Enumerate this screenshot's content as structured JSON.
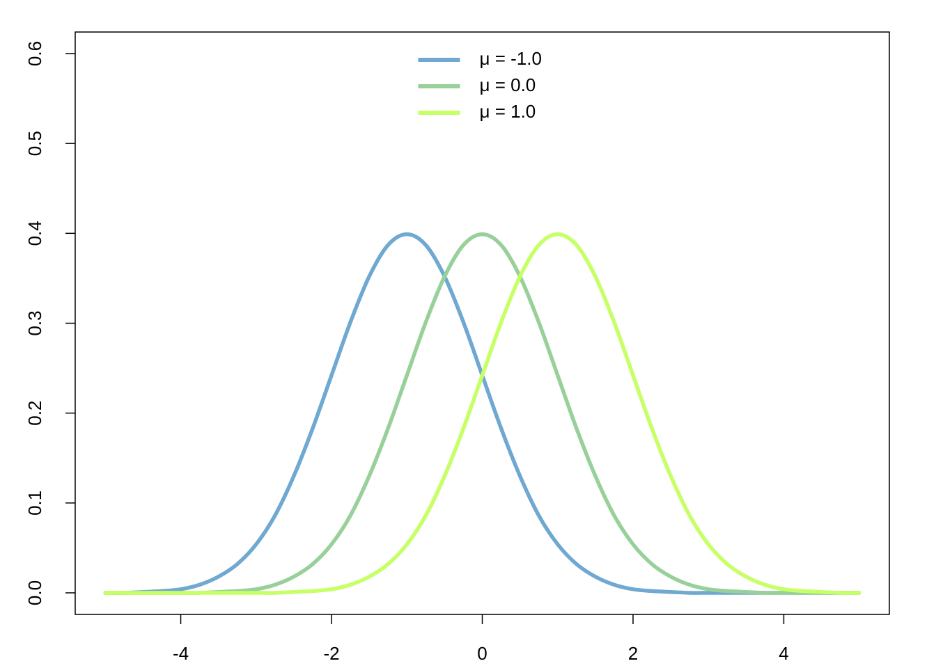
{
  "chart_data": {
    "type": "line",
    "x": [
      -5,
      -4.75,
      -4.5,
      -4.25,
      -4,
      -3.75,
      -3.5,
      -3.25,
      -3,
      -2.75,
      -2.5,
      -2.25,
      -2,
      -1.75,
      -1.5,
      -1.25,
      -1,
      -0.75,
      -0.5,
      -0.25,
      0,
      0.25,
      0.5,
      0.75,
      1,
      1.25,
      1.5,
      1.75,
      2,
      2.25,
      2.5,
      2.75,
      3,
      3.25,
      3.5,
      3.75,
      4,
      4.25,
      4.5,
      4.75,
      5
    ],
    "series": [
      {
        "name": "μ = -1.0",
        "color": "#6fa8d0",
        "values": [
          0,
          0,
          0.001,
          0.002,
          0.004,
          0.009,
          0.018,
          0.032,
          0.054,
          0.086,
          0.13,
          0.183,
          0.242,
          0.301,
          0.352,
          0.387,
          0.399,
          0.387,
          0.352,
          0.301,
          0.242,
          0.183,
          0.13,
          0.086,
          0.054,
          0.032,
          0.018,
          0.009,
          0.004,
          0.002,
          0.001,
          0,
          0,
          0,
          0,
          0,
          0,
          0,
          0,
          0,
          0
        ]
      },
      {
        "name": "μ = 0.0",
        "color": "#98d09a",
        "values": [
          0,
          0,
          0,
          0,
          0,
          0,
          0.001,
          0.002,
          0.004,
          0.009,
          0.018,
          0.032,
          0.054,
          0.086,
          0.13,
          0.183,
          0.242,
          0.301,
          0.352,
          0.387,
          0.399,
          0.387,
          0.352,
          0.301,
          0.242,
          0.183,
          0.13,
          0.086,
          0.054,
          0.032,
          0.018,
          0.009,
          0.004,
          0.002,
          0.001,
          0,
          0,
          0,
          0,
          0,
          0
        ]
      },
      {
        "name": "μ = 1.0",
        "color": "#c6ff66",
        "values": [
          0,
          0,
          0,
          0,
          0,
          0,
          0,
          0,
          0,
          0,
          0.001,
          0.002,
          0.004,
          0.009,
          0.018,
          0.032,
          0.054,
          0.086,
          0.13,
          0.183,
          0.242,
          0.301,
          0.352,
          0.387,
          0.399,
          0.387,
          0.352,
          0.301,
          0.242,
          0.183,
          0.13,
          0.086,
          0.054,
          0.032,
          0.018,
          0.009,
          0.004,
          0.002,
          0.001,
          0,
          0
        ]
      }
    ],
    "xlim": [
      -5.4,
      5.4
    ],
    "xticks": [
      -4,
      -2,
      0,
      2,
      4
    ],
    "ylim": [
      -0.024,
      0.624
    ],
    "yticks": [
      {
        "value": 0,
        "label": "0.0"
      },
      0.1,
      0.2,
      0.3,
      0.4,
      0.5,
      0.6
    ],
    "legend": "top"
  }
}
